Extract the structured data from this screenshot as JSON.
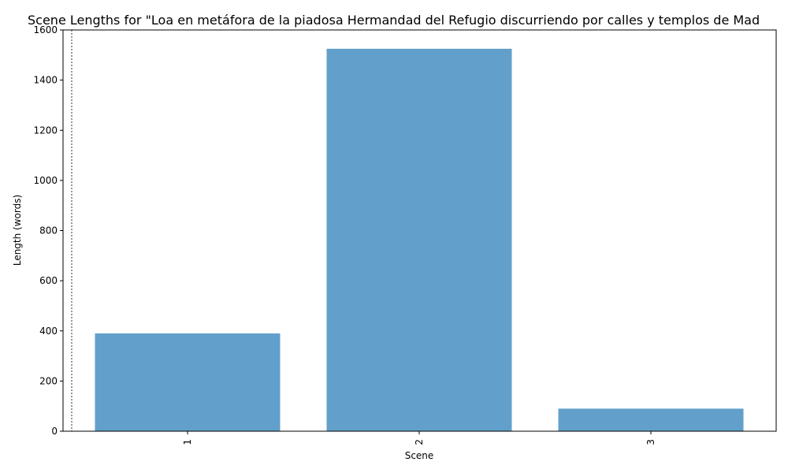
{
  "chart_data": {
    "type": "bar",
    "title": "Scene Lengths for \"Loa en metáfora de la piadosa Hermandad del Refugio discurriendo por calles y templos de Mad",
    "xlabel": "Scene",
    "ylabel": "Length (words)",
    "categories": [
      "1",
      "2",
      "3"
    ],
    "values": [
      390,
      1525,
      90
    ],
    "ylim": [
      0,
      1600
    ],
    "yticks": [
      0,
      200,
      400,
      600,
      800,
      1000,
      1200,
      1400,
      1600
    ],
    "bar_color": "#62a0cb",
    "grid": false,
    "legend": "none",
    "x_tick_rotation": "vertical",
    "reference_line": "dotted vertical line left of first bar"
  }
}
